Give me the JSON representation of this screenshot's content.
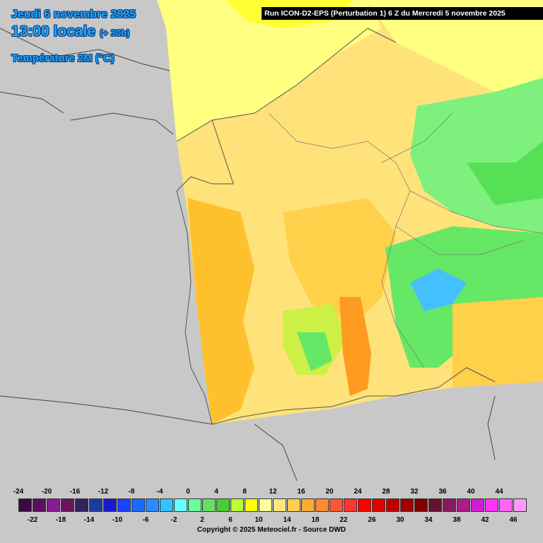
{
  "header": {
    "date": "Jeudi 6 novembre 2025",
    "time": "13:00 locale",
    "lead": "(+ 30h)",
    "parameter": "Température 2M (°C)"
  },
  "run_label": "Run ICON-D2-EPS (Perturbation 1) 6 Z du Mercredi 5 novembre 2025",
  "legend": {
    "top_labels": [
      "-24",
      "-20",
      "-16",
      "-12",
      "-8",
      "-4",
      "0",
      "4",
      "8",
      "12",
      "16",
      "20",
      "24",
      "28",
      "32",
      "36",
      "40",
      "44"
    ],
    "bottom_labels": [
      "-22",
      "-18",
      "-14",
      "-10",
      "-6",
      "-2",
      "2",
      "6",
      "10",
      "14",
      "18",
      "22",
      "26",
      "30",
      "34",
      "38",
      "42",
      "46"
    ],
    "colors": [
      "#3b0a3e",
      "#5c0f5f",
      "#8a1a90",
      "#6a1460",
      "#30235e",
      "#1a3da0",
      "#1a1acd",
      "#1a44ff",
      "#1a6aff",
      "#2a8cff",
      "#33c3ff",
      "#66ffff",
      "#66ff99",
      "#66e066",
      "#4acc33",
      "#b8ff33",
      "#ffff00",
      "#ffff99",
      "#ffe680",
      "#ffcc4d",
      "#ffaa33",
      "#ff8833",
      "#ff5533",
      "#ff3333",
      "#ff0000",
      "#e00000",
      "#c00000",
      "#a00000",
      "#800000",
      "#6a1030",
      "#8a1a60",
      "#b01a8a",
      "#d41ad4",
      "#ff33ff",
      "#ff66ff",
      "#ff99ff"
    ]
  },
  "copyright": "Copyright © 2025 Meteociel.fr - Source DWD",
  "map_colors": {
    "background": "#c8c8c8",
    "cool": "#ffff80",
    "mild": "#ffdd55",
    "warm": "#ffc02e",
    "hot": "#ffa520",
    "green": "#66ee66",
    "blue_alps": "#33b0ff"
  }
}
